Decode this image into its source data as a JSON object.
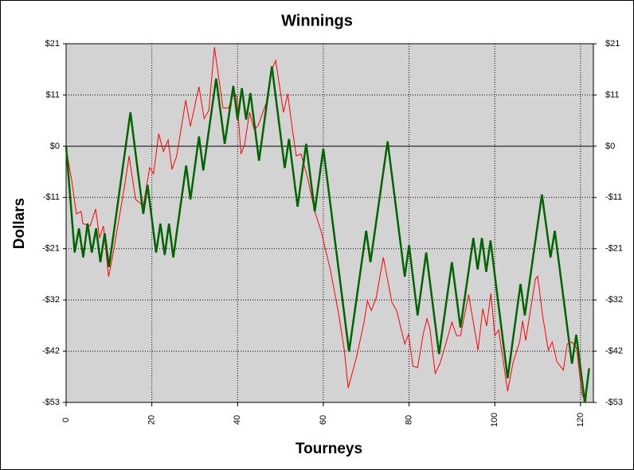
{
  "chart_data": {
    "type": "line",
    "title": "Winnings",
    "x_label": "Tourneys",
    "y_label": "Dollars",
    "xlim": [
      0,
      123
    ],
    "xticks": [
      0,
      20,
      40,
      60,
      80,
      100,
      120
    ],
    "ylim": [
      -53,
      21.2
    ],
    "yticks": [
      {
        "value": 21.2,
        "label": "$21"
      },
      {
        "value": 10.6,
        "label": "$11"
      },
      {
        "value": 0,
        "label": "$0"
      },
      {
        "value": -10.6,
        "label": "-$11"
      },
      {
        "value": -21.2,
        "label": "-$21"
      },
      {
        "value": -31.8,
        "label": "-$32"
      },
      {
        "value": -42.4,
        "label": "-$42"
      },
      {
        "value": -53,
        "label": "-$53"
      }
    ],
    "grid": true,
    "series": [
      {
        "color": "#ff0000",
        "width": 1,
        "x": [
          0,
          1.3,
          2.4,
          3.5,
          3.9,
          5.6,
          6.9,
          7.8,
          8.7,
          9.9,
          10.8,
          13.6,
          14.7,
          16.2,
          18,
          19.5,
          20.4,
          21.6,
          22.7,
          23.8,
          24.7,
          25.8,
          27.9,
          29,
          30.1,
          31,
          32.2,
          33.3,
          34.6,
          36.6,
          37.9,
          39,
          39.8,
          40.8,
          41.6,
          42.8,
          43.9,
          44.8,
          46.7,
          47.8,
          48.9,
          50.7,
          51.7,
          52.8,
          53.7,
          54.8,
          56.3,
          58,
          59.5,
          61.7,
          63.6,
          64.9,
          65.8,
          67.7,
          69.5,
          70.3,
          71.2,
          72.3,
          74,
          76,
          77.1,
          79,
          79.9,
          80.9,
          82,
          83.3,
          84.2,
          84.9,
          86.1,
          87.2,
          88.7,
          90,
          91.1,
          92,
          93.9,
          96.1,
          97.2,
          98.1,
          99.1,
          100,
          100.9,
          103,
          104.3,
          105.8,
          106.5,
          107.2,
          109.5,
          110,
          111.2,
          112.5,
          113.4,
          114.5,
          116,
          116.9,
          118,
          119.1,
          120.3,
          121.2,
          122
        ],
        "values": [
          -0.5,
          -7,
          -14,
          -13.5,
          -16,
          -16.5,
          -13,
          -19,
          -16.5,
          -27,
          -23,
          -8.5,
          -2,
          -11,
          -12.3,
          -4.4,
          -5.7,
          2.6,
          -1.1,
          1.3,
          -4.8,
          -2,
          9.5,
          4.1,
          8.7,
          12.3,
          5.7,
          7.4,
          20.5,
          7.9,
          7.9,
          10.7,
          10.4,
          -1.6,
          0.2,
          7,
          3.4,
          4.3,
          9,
          15.6,
          17.7,
          7,
          10.8,
          3.4,
          -2,
          -1.6,
          -6.4,
          -13.5,
          -17.6,
          -25.8,
          -34.8,
          -42.2,
          -50,
          -43.8,
          -36.4,
          -32,
          -34,
          -31.5,
          -23,
          -32.3,
          -34,
          -40.9,
          -38.9,
          -45.5,
          -45.8,
          -38.9,
          -35.6,
          -38,
          -47,
          -45,
          -40.5,
          -36.4,
          -39.2,
          -39.2,
          -30.7,
          -42.2,
          -33.6,
          -37.2,
          -30.4,
          -39.2,
          -38,
          -50.7,
          -44.6,
          -40.5,
          -36.1,
          -40.2,
          -27.4,
          -26.9,
          -35.3,
          -42.2,
          -40.5,
          -44.6,
          -46.3,
          -40.9,
          -40.5,
          -41.8,
          -51.2,
          -53,
          -45.8
        ]
      },
      {
        "color": "#006400",
        "width": 2.5,
        "x": [
          0,
          2,
          3,
          4,
          5,
          6,
          7,
          8,
          9,
          10,
          15,
          17,
          18,
          19,
          21,
          22,
          23,
          24,
          25,
          28,
          29,
          31,
          32,
          35,
          37,
          39,
          40,
          41,
          42,
          43,
          45,
          48,
          51,
          52,
          54,
          56,
          58,
          60,
          66,
          70,
          71,
          75,
          79,
          80,
          82,
          84,
          87,
          90,
          92,
          95,
          96,
          97,
          98,
          99,
          103,
          106,
          107,
          111,
          113,
          114,
          118,
          119,
          121,
          122
        ],
        "values": [
          0,
          -22,
          -17,
          -23,
          -16,
          -22,
          -17,
          -24,
          -18,
          -25,
          7,
          -7,
          -14,
          -8,
          -22,
          -16,
          -22.5,
          -16,
          -23,
          -4,
          -11,
          2,
          -5,
          14,
          0.5,
          12.5,
          5.5,
          12,
          5.5,
          11,
          -3,
          16.5,
          -4.5,
          1.5,
          -12.5,
          0.5,
          -13.5,
          -0.5,
          -42.5,
          -17.5,
          -24,
          1,
          -27,
          -20.5,
          -35,
          -22,
          -43,
          -24,
          -37.5,
          -19,
          -25.5,
          -19,
          -26,
          -19.5,
          -48,
          -28.5,
          -35,
          -10,
          -23,
          -17.5,
          -45,
          -39,
          -53,
          -46
        ]
      }
    ]
  }
}
